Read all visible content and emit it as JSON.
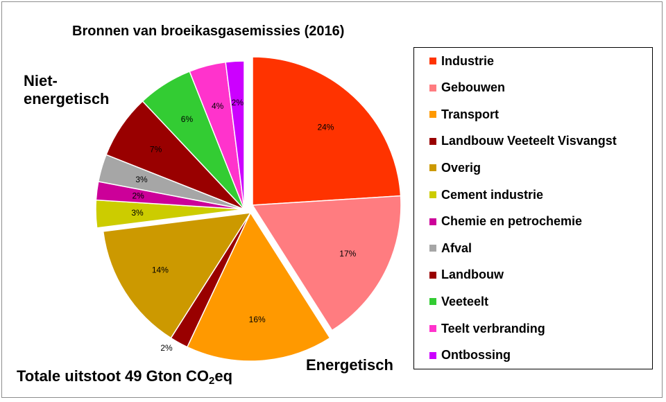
{
  "chart_data": {
    "type": "pie",
    "title": "Bronnen van broeikasgasemissies (2016)",
    "slices": [
      {
        "name": "Industrie",
        "value": 24,
        "label": "24%",
        "color": "#ff3300"
      },
      {
        "name": "Gebouwen",
        "value": 17,
        "label": "17%",
        "color": "#ff7c80"
      },
      {
        "name": "Transport",
        "value": 16,
        "label": "16%",
        "color": "#ff9900"
      },
      {
        "name": "Landbouw Veeteelt Visvangst",
        "value": 2,
        "label": "2%",
        "color": "#990000"
      },
      {
        "name": "Overig",
        "value": 14,
        "label": "14%",
        "color": "#cc9900"
      },
      {
        "name": "Cement industrie",
        "value": 3,
        "label": "3%",
        "color": "#cccc00"
      },
      {
        "name": "Chemie en petrochemie",
        "value": 2,
        "label": "2%",
        "color": "#cc0099"
      },
      {
        "name": "Afval",
        "value": 3,
        "label": "3%",
        "color": "#a6a6a6"
      },
      {
        "name": "Landbouw",
        "value": 7,
        "label": "7%",
        "color": "#990000"
      },
      {
        "name": "Veeteelt",
        "value": 6,
        "label": "6%",
        "color": "#33cc33"
      },
      {
        "name": "Teelt verbranding",
        "value": 4,
        "label": "4%",
        "color": "#ff33cc"
      },
      {
        "name": "Ontbossing",
        "value": 2,
        "label": "2%",
        "color": "#cc00ff"
      }
    ],
    "groups": [
      {
        "label": "Energetisch",
        "members": [
          "Industrie",
          "Gebouwen",
          "Transport",
          "Landbouw Veeteelt Visvangst",
          "Overig"
        ]
      },
      {
        "label": "Niet-energetisch",
        "members": [
          "Cement industrie",
          "Chemie en petrochemie",
          "Afval",
          "Landbouw",
          "Veeteelt",
          "Teelt verbranding",
          "Ontbossing"
        ]
      }
    ],
    "legend_position": "right"
  },
  "annotations": {
    "niet_energetisch_line1": "Niet-",
    "niet_energetisch_line2": "energetisch",
    "energetisch": "Energetisch",
    "total_prefix": "Totale uitstoot 49 Gton CO",
    "total_subscript": "2",
    "total_suffix": "eq"
  }
}
